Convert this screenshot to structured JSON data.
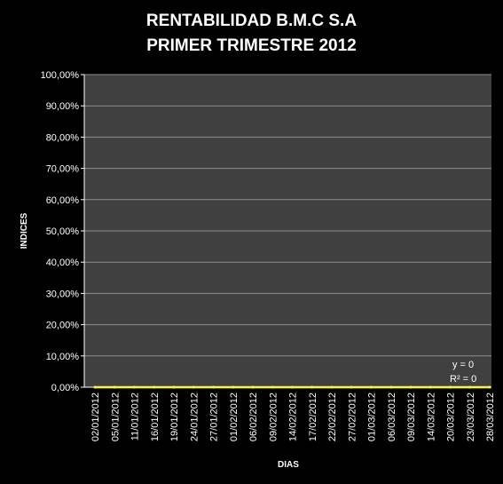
{
  "chart_data": {
    "type": "line",
    "title_lines": [
      "RENTABILIDAD B.M.C  S.A",
      "PRIMER TRIMESTRE 2012"
    ],
    "xlabel": "DIAS",
    "ylabel": "INDICES",
    "ylim": [
      0,
      1
    ],
    "y_ticks": [
      {
        "value": 0.0,
        "label": "0,00%"
      },
      {
        "value": 0.1,
        "label": "10,00%"
      },
      {
        "value": 0.2,
        "label": "20,00%"
      },
      {
        "value": 0.3,
        "label": "30,00%"
      },
      {
        "value": 0.4,
        "label": "40,00%"
      },
      {
        "value": 0.5,
        "label": "50,00%"
      },
      {
        "value": 0.6,
        "label": "60,00%"
      },
      {
        "value": 0.7,
        "label": "70,00%"
      },
      {
        "value": 0.8,
        "label": "80,00%"
      },
      {
        "value": 0.9,
        "label": "90,00%"
      },
      {
        "value": 1.0,
        "label": "100,00%"
      }
    ],
    "x_tick_labels": [
      "02/01/2012",
      "05/01/2012",
      "11/01/2012",
      "16/01/2012",
      "19/01/2012",
      "24/01/2012",
      "27/01/2012",
      "01/02/2012",
      "06/02/2012",
      "09/02/2012",
      "14/02/2012",
      "17/02/2012",
      "22/02/2012",
      "27/02/2012",
      "01/03/2012",
      "06/03/2012",
      "09/03/2012",
      "14/03/2012",
      "20/03/2012",
      "23/03/2012",
      "28/03/2012"
    ],
    "series": [
      {
        "color": "#ffff00",
        "x": [
          "02/01/2012",
          "05/01/2012",
          "11/01/2012",
          "16/01/2012",
          "19/01/2012",
          "24/01/2012",
          "27/01/2012",
          "01/02/2012",
          "06/02/2012",
          "09/02/2012",
          "14/02/2012",
          "17/02/2012",
          "22/02/2012",
          "27/02/2012",
          "01/03/2012",
          "06/03/2012",
          "09/03/2012",
          "14/03/2012",
          "20/03/2012",
          "23/03/2012",
          "28/03/2012"
        ],
        "values": [
          0,
          0,
          0,
          0,
          0,
          0,
          0,
          0,
          0,
          0,
          0,
          0,
          0,
          0,
          0,
          0,
          0,
          0,
          0,
          0,
          0
        ]
      }
    ],
    "trendline": {
      "equation": "y = 0",
      "r_squared": "R² = 0"
    },
    "grid": true,
    "legend": "none",
    "colors": {
      "background": "#000000",
      "plot_area": "#404040",
      "gridline": "#8c8c8c",
      "series": "#ffff00"
    }
  }
}
